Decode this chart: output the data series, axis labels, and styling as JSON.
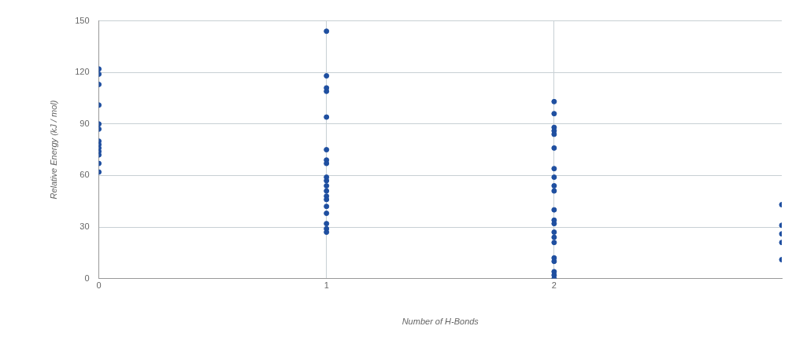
{
  "chart_data": {
    "type": "scatter",
    "xlabel": "Number of H-Bonds",
    "ylabel": "Relative Energy (kJ / mol)",
    "xlim": [
      0,
      3
    ],
    "xticks": [
      0,
      1,
      2
    ],
    "ylim": [
      0,
      150
    ],
    "yticks": [
      0,
      30,
      60,
      90,
      120,
      150
    ],
    "grid": true,
    "legend": false,
    "marker": "circle",
    "series": [
      {
        "color": "#1f4fa0",
        "x": [
          0,
          0,
          0,
          0,
          0,
          0,
          0,
          0,
          0,
          0,
          0,
          0,
          0,
          1,
          1,
          1,
          1,
          1,
          1,
          1,
          1,
          1,
          1,
          1,
          1,
          1,
          1,
          1,
          1,
          1,
          1,
          1,
          2,
          2,
          2,
          2,
          2,
          2,
          2,
          2,
          2,
          2,
          2,
          2,
          2,
          2,
          2,
          2,
          2,
          2,
          2,
          2,
          2,
          3,
          3,
          3,
          3,
          3
        ],
        "values": [
          122,
          119,
          113,
          101,
          90,
          87,
          80,
          78,
          76,
          74,
          72,
          67,
          62,
          144,
          118,
          111,
          109,
          94,
          75,
          69,
          67,
          59,
          57,
          54,
          51,
          48,
          46,
          42,
          38,
          32,
          29,
          27,
          103,
          96,
          88,
          86,
          84,
          76,
          64,
          59,
          54,
          51,
          40,
          34,
          32,
          27,
          24,
          21,
          12,
          10,
          4,
          2,
          0,
          43,
          31,
          26,
          21,
          11
        ]
      }
    ]
  }
}
